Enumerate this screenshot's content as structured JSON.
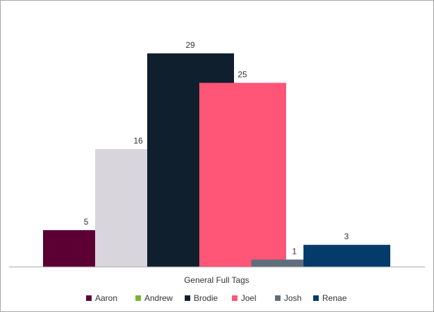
{
  "chart_data": {
    "type": "bar",
    "categories": [
      "General Full Tags"
    ],
    "series": [
      {
        "name": "Aaron",
        "values": [
          5
        ],
        "color": "#5c0033"
      },
      {
        "name": "Andrew",
        "values": [
          0
        ],
        "color": "#77b33a"
      },
      {
        "name": "Brodie",
        "values": [
          29
        ],
        "color": "#0f1f2e"
      },
      {
        "name": "Joel",
        "values": [
          25
        ],
        "color": "#ff5577"
      },
      {
        "name": "Josh",
        "values": [
          1
        ],
        "color": "#5e6e7d"
      },
      {
        "name": "Renae",
        "values": [
          3
        ],
        "color": "#033b6b"
      }
    ],
    "data_labels": [
      "5",
      "16",
      "29",
      "25",
      "1",
      "3"
    ],
    "title": "",
    "xlabel": "",
    "ylabel": "",
    "ylim": [
      0,
      30
    ],
    "grid": false,
    "legend_position": "bottom"
  },
  "extra_bar": {
    "value": 16,
    "color": "#d8d6dc"
  }
}
